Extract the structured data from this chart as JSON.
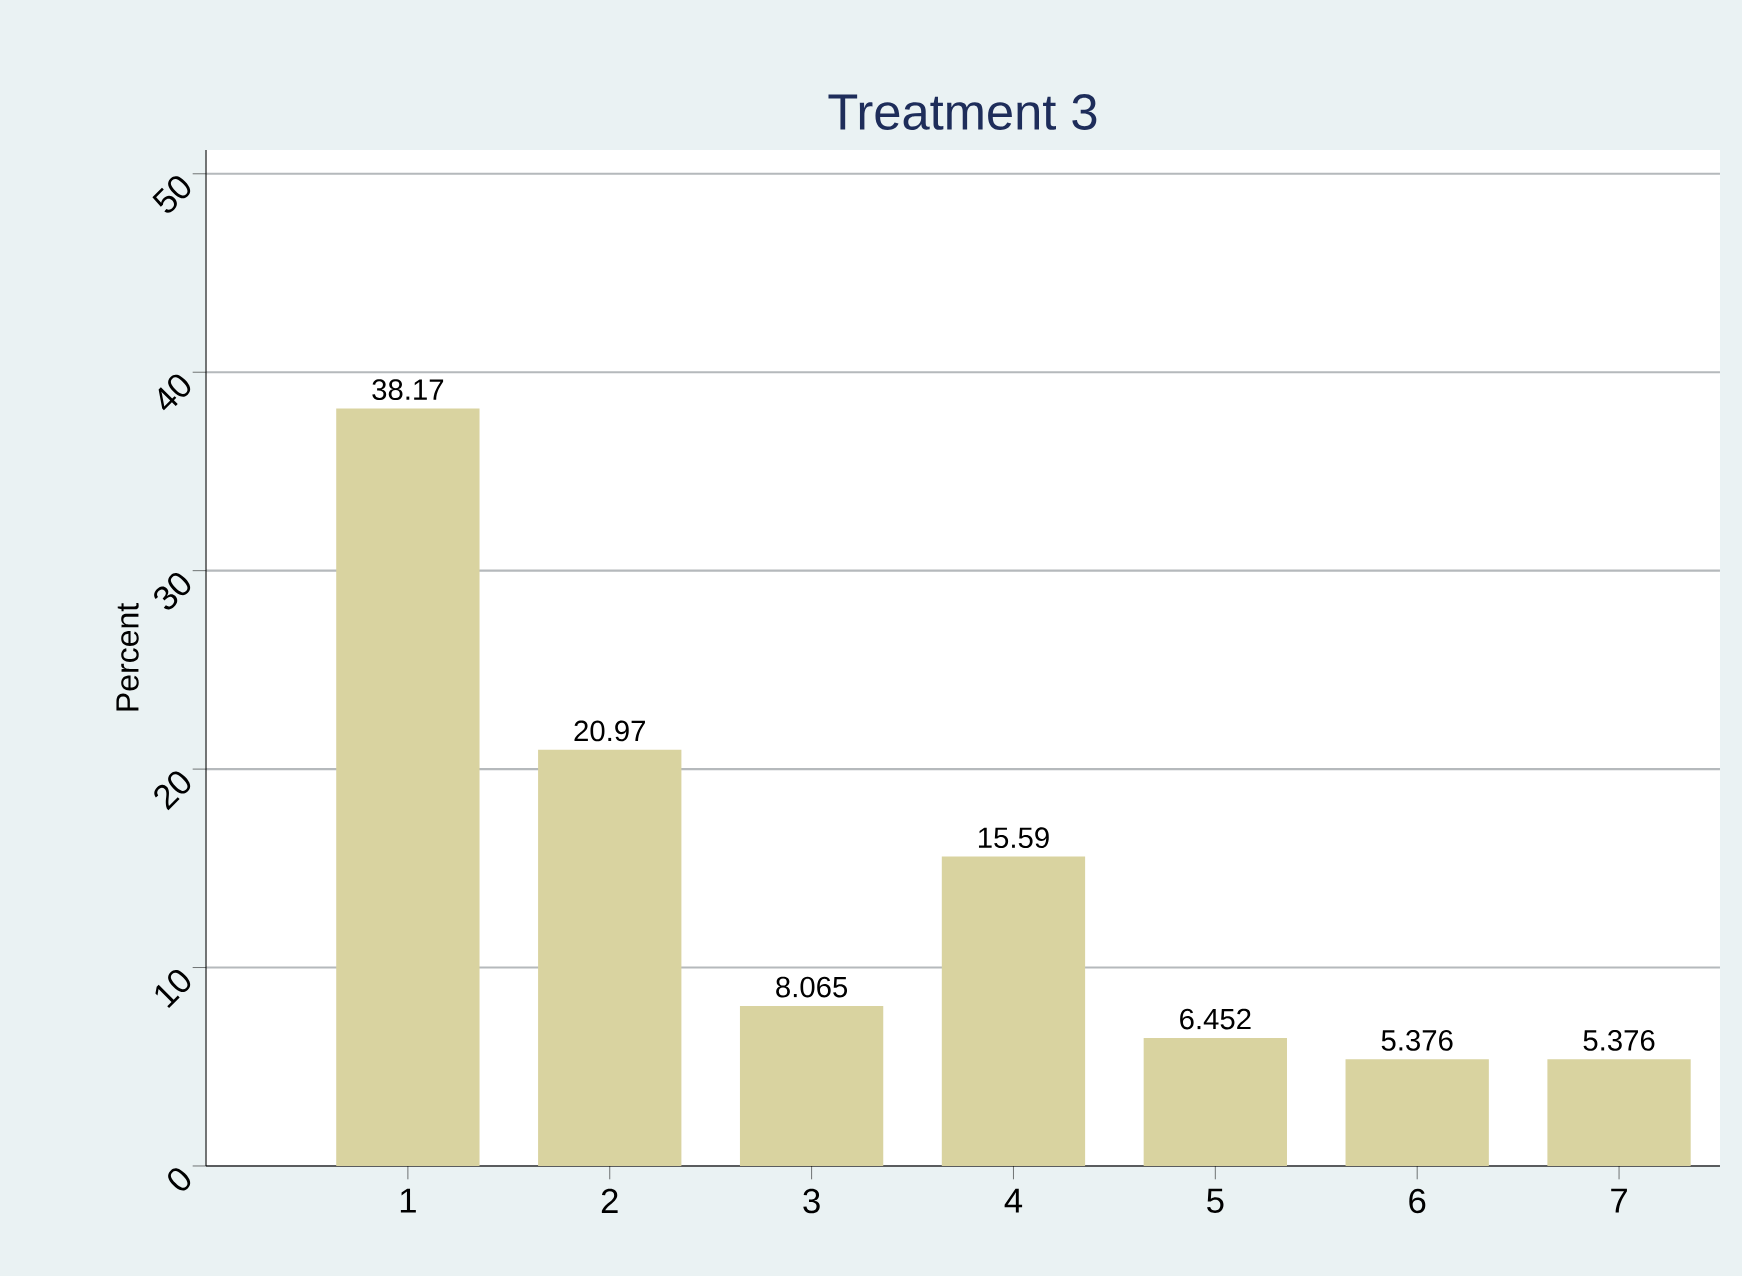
{
  "chart_data": {
    "type": "bar",
    "title": "Treatment 3",
    "ylabel": "Percent",
    "x": [
      1,
      2,
      3,
      4,
      5,
      6,
      7
    ],
    "values": [
      38.17,
      20.97,
      8.065,
      15.59,
      6.452,
      5.376,
      5.376
    ],
    "value_labels": [
      "38.17",
      "20.97",
      "8.065",
      "15.59",
      "6.452",
      "5.376",
      "5.376"
    ],
    "color": "#d9d3a0",
    "xlim": [
      0,
      7.5
    ],
    "xticks": [
      1,
      2,
      3,
      4,
      5,
      6,
      7
    ],
    "ylim": [
      0,
      51.2
    ],
    "yticks": [
      0,
      10,
      20,
      30,
      40,
      50
    ],
    "grid": "y"
  }
}
